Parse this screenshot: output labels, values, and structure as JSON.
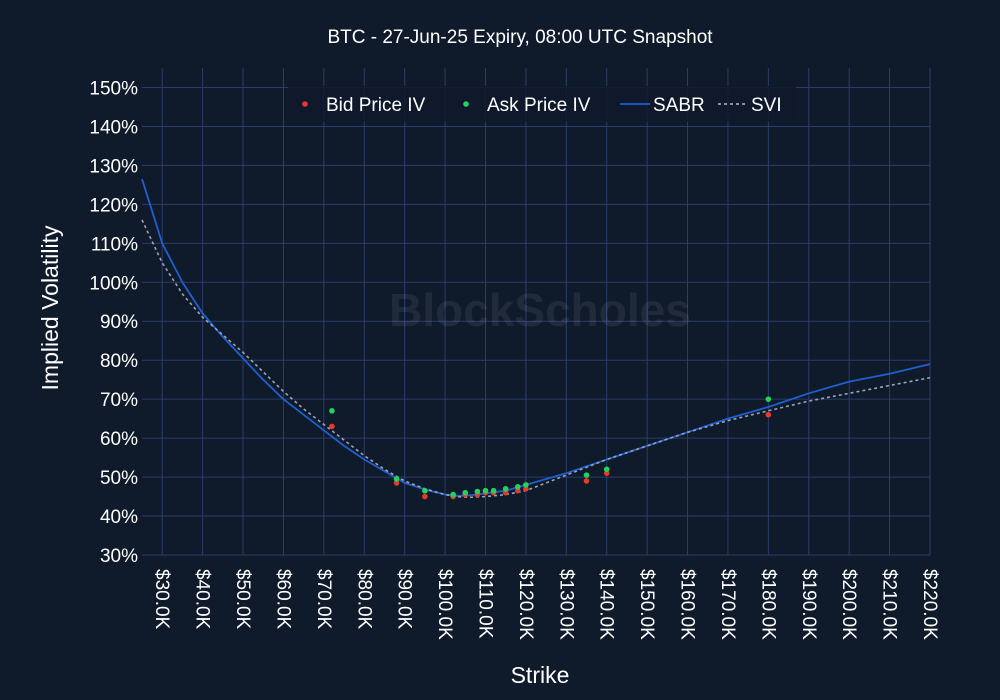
{
  "chart_data": {
    "type": "scatter",
    "title": "BTC - 27-Jun-25 Expiry, 08:00 UTC Snapshot",
    "xlabel": "Strike",
    "ylabel": "Implied Volatility",
    "xlim": [
      25,
      220
    ],
    "ylim": [
      30,
      155
    ],
    "x_ticks": [
      30,
      40,
      50,
      60,
      70,
      80,
      90,
      100,
      110,
      120,
      130,
      140,
      150,
      160,
      170,
      180,
      190,
      200,
      210,
      220
    ],
    "x_tick_labels": [
      "$30.0K",
      "$40.0K",
      "$50.0K",
      "$60.0K",
      "$70.0K",
      "$80.0K",
      "$90.0K",
      "$100.0K",
      "$110.0K",
      "$120.0K",
      "$130.0K",
      "$140.0K",
      "$150.0K",
      "$160.0K",
      "$170.0K",
      "$180.0K",
      "$190.0K",
      "$200.0K",
      "$210.0K",
      "$220.0K"
    ],
    "y_ticks": [
      30,
      40,
      50,
      60,
      70,
      80,
      90,
      100,
      110,
      120,
      130,
      140,
      150
    ],
    "y_tick_labels": [
      "30%",
      "40%",
      "50%",
      "60%",
      "70%",
      "80%",
      "90%",
      "100%",
      "110%",
      "120%",
      "130%",
      "140%",
      "150%"
    ],
    "grid": true,
    "legend_position": "top-center",
    "watermark": "BlockScholes",
    "colors": {
      "background": "#0f1a2b",
      "grid": "#2b3d6b",
      "bid": "#e8392c",
      "ask": "#22d35a",
      "sabr": "#1f5fd0",
      "svi": "#9aa4b4"
    },
    "series": [
      {
        "name": "Bid Price IV",
        "kind": "scatter",
        "x": [
          72,
          88,
          95,
          102,
          105,
          108,
          110,
          112,
          115,
          118,
          120,
          135,
          140,
          180
        ],
        "y": [
          63,
          48.5,
          45,
          45,
          45.5,
          45.5,
          46,
          46,
          46,
          46.5,
          47,
          49,
          51,
          66
        ]
      },
      {
        "name": "Ask Price IV",
        "kind": "scatter",
        "x": [
          72,
          88,
          95,
          102,
          105,
          108,
          110,
          112,
          115,
          118,
          120,
          135,
          140,
          180
        ],
        "y": [
          67,
          49.5,
          46.5,
          45.5,
          46,
          46.3,
          46.5,
          46.5,
          47,
          47.5,
          48,
          50.5,
          52,
          70
        ]
      },
      {
        "name": "SABR",
        "kind": "line",
        "x": [
          25,
          30,
          35,
          40,
          45,
          50,
          55,
          60,
          65,
          70,
          75,
          80,
          85,
          90,
          95,
          100,
          103,
          106,
          110,
          115,
          120,
          125,
          130,
          140,
          150,
          160,
          170,
          180,
          190,
          200,
          210,
          220
        ],
        "y": [
          126.5,
          110,
          100,
          92,
          86,
          80.5,
          75,
          70,
          66,
          62,
          58,
          54.5,
          51.5,
          48.5,
          46.8,
          45.5,
          45.2,
          45.3,
          45.8,
          46.5,
          48,
          49.5,
          51,
          54.5,
          58,
          61.5,
          65,
          68,
          71.5,
          74.5,
          76.5,
          79
        ]
      },
      {
        "name": "SVI",
        "kind": "line",
        "x": [
          25,
          30,
          35,
          40,
          45,
          50,
          55,
          60,
          65,
          70,
          75,
          80,
          85,
          90,
          95,
          100,
          103,
          106,
          110,
          115,
          120,
          125,
          130,
          140,
          150,
          160,
          170,
          180,
          190,
          200,
          210,
          220
        ],
        "y": [
          116,
          105,
          97,
          91,
          86.5,
          82,
          77,
          72,
          67.5,
          63.5,
          59.5,
          55.5,
          52,
          49,
          47,
          45.5,
          45,
          44.8,
          45,
          45.5,
          46.5,
          48.5,
          50.5,
          54.5,
          58,
          61.5,
          64.5,
          67,
          69.5,
          71.5,
          73.5,
          75.5
        ]
      }
    ]
  }
}
